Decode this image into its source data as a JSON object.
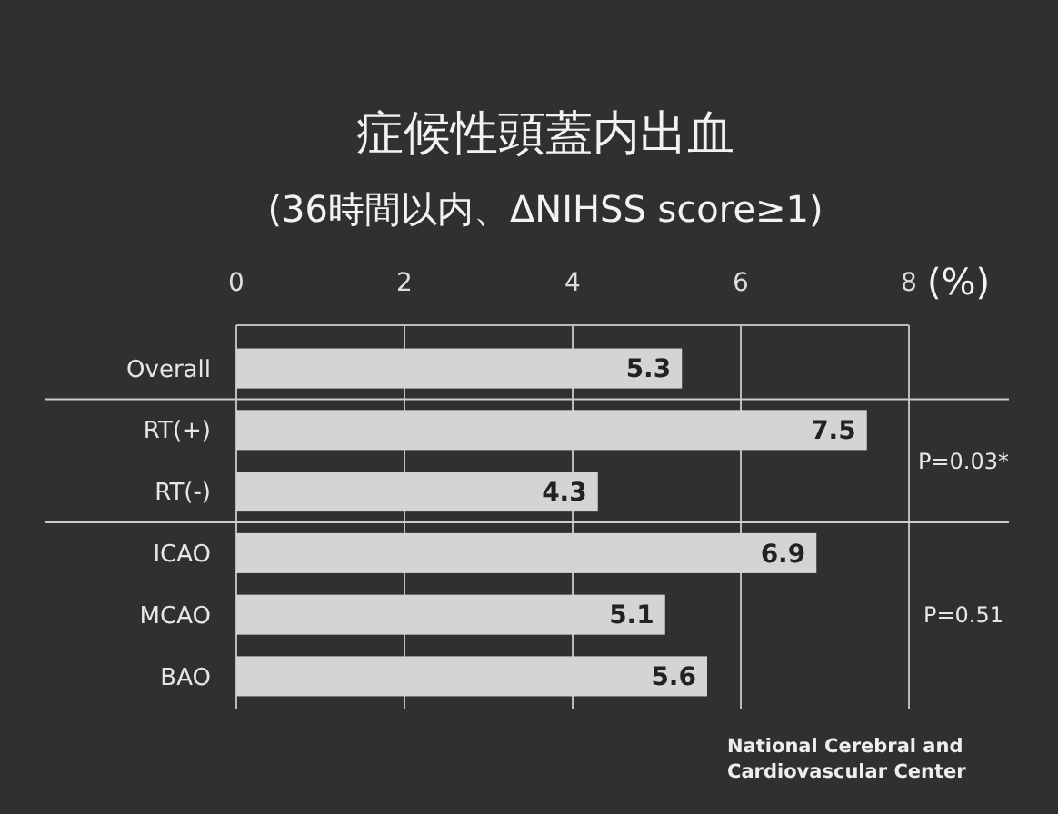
{
  "chart_data": {
    "type": "bar",
    "orientation": "horizontal",
    "title": "症候性頭蓋内出血",
    "subtitle": "(36時間以内、ΔNIHSS score≥1)",
    "xlabel": "(%)",
    "categories": [
      "Overall",
      "RT(+)",
      "RT(-)",
      "ICAO",
      "MCAO",
      "BAO"
    ],
    "values": [
      5.3,
      7.5,
      4.3,
      6.9,
      5.1,
      5.6
    ],
    "color": "#d4d4d4",
    "xlim": [
      0,
      8
    ],
    "xticks": [
      0,
      2,
      4,
      6,
      8
    ],
    "grid": "x",
    "data_labels": true,
    "annotations": [
      "P=0.03*",
      "P=0.51",
      "National Cerebral and\nCardiovascular Center"
    ]
  }
}
